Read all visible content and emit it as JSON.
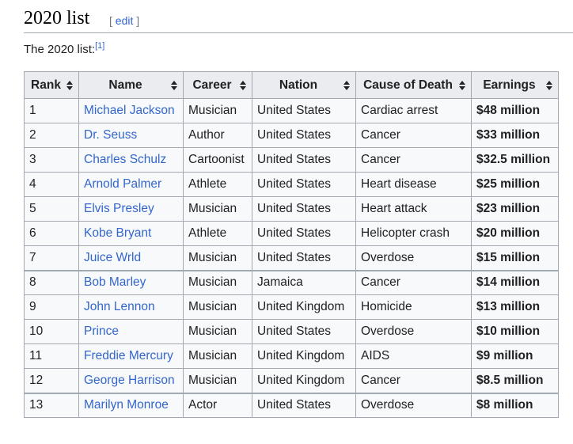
{
  "section": {
    "title": "2020 list",
    "edit_open": "[",
    "edit_label": "edit",
    "edit_close": "]"
  },
  "intro": {
    "text": "The 2020 list:",
    "ref": "[1]"
  },
  "table": {
    "headers": [
      "Rank",
      "Name",
      "Career",
      "Nation",
      "Cause of Death",
      "Earnings"
    ],
    "rows": [
      {
        "rank": "1",
        "name": "Michael Jackson",
        "career": "Musician",
        "nation": "United States",
        "cause": "Cardiac arrest",
        "earnings": "$48 million"
      },
      {
        "rank": "2",
        "name": "Dr. Seuss",
        "career": "Author",
        "nation": "United States",
        "cause": "Cancer",
        "earnings": "$33 million"
      },
      {
        "rank": "3",
        "name": "Charles Schulz",
        "career": "Cartoonist",
        "nation": "United States",
        "cause": "Cancer",
        "earnings": "$32.5 million"
      },
      {
        "rank": "4",
        "name": "Arnold Palmer",
        "career": "Athlete",
        "nation": "United States",
        "cause": "Heart disease",
        "earnings": "$25 million"
      },
      {
        "rank": "5",
        "name": "Elvis Presley",
        "career": "Musician",
        "nation": "United States",
        "cause": "Heart attack",
        "earnings": "$23 million"
      },
      {
        "rank": "6",
        "name": "Kobe Bryant",
        "career": "Athlete",
        "nation": "United States",
        "cause": "Helicopter crash",
        "earnings": "$20 million"
      },
      {
        "rank": "7",
        "name": "Juice Wrld",
        "career": "Musician",
        "nation": "United States",
        "cause": "Overdose",
        "earnings": "$15 million"
      },
      {
        "rank": "8",
        "name": "Bob Marley",
        "career": "Musician",
        "nation": "Jamaica",
        "cause": "Cancer",
        "earnings": "$14 million"
      },
      {
        "rank": "9",
        "name": "John Lennon",
        "career": "Musician",
        "nation": "United Kingdom",
        "cause": "Homicide",
        "earnings": "$13 million"
      },
      {
        "rank": "10",
        "name": "Prince",
        "career": "Musician",
        "nation": "United States",
        "cause": "Overdose",
        "earnings": "$10 million"
      },
      {
        "rank": "11",
        "name": "Freddie Mercury",
        "career": "Musician",
        "nation": "United Kingdom",
        "cause": "AIDS",
        "earnings": "$9 million"
      },
      {
        "rank": "12",
        "name": "George Harrison",
        "career": "Musician",
        "nation": "United Kingdom",
        "cause": "Cancer",
        "earnings": "$8.5 million"
      },
      {
        "rank": "13",
        "name": "Marilyn Monroe",
        "career": "Actor",
        "nation": "United States",
        "cause": "Overdose",
        "earnings": "$8 million"
      }
    ],
    "row_separators_before": [
      7,
      12
    ]
  },
  "colors": {
    "link": "#3366cc",
    "header_bg": "#eaecf0",
    "table_bg": "#f8f9fa",
    "border": "#a2a9b1"
  },
  "icons": {
    "sort": "sort-arrows-icon"
  }
}
